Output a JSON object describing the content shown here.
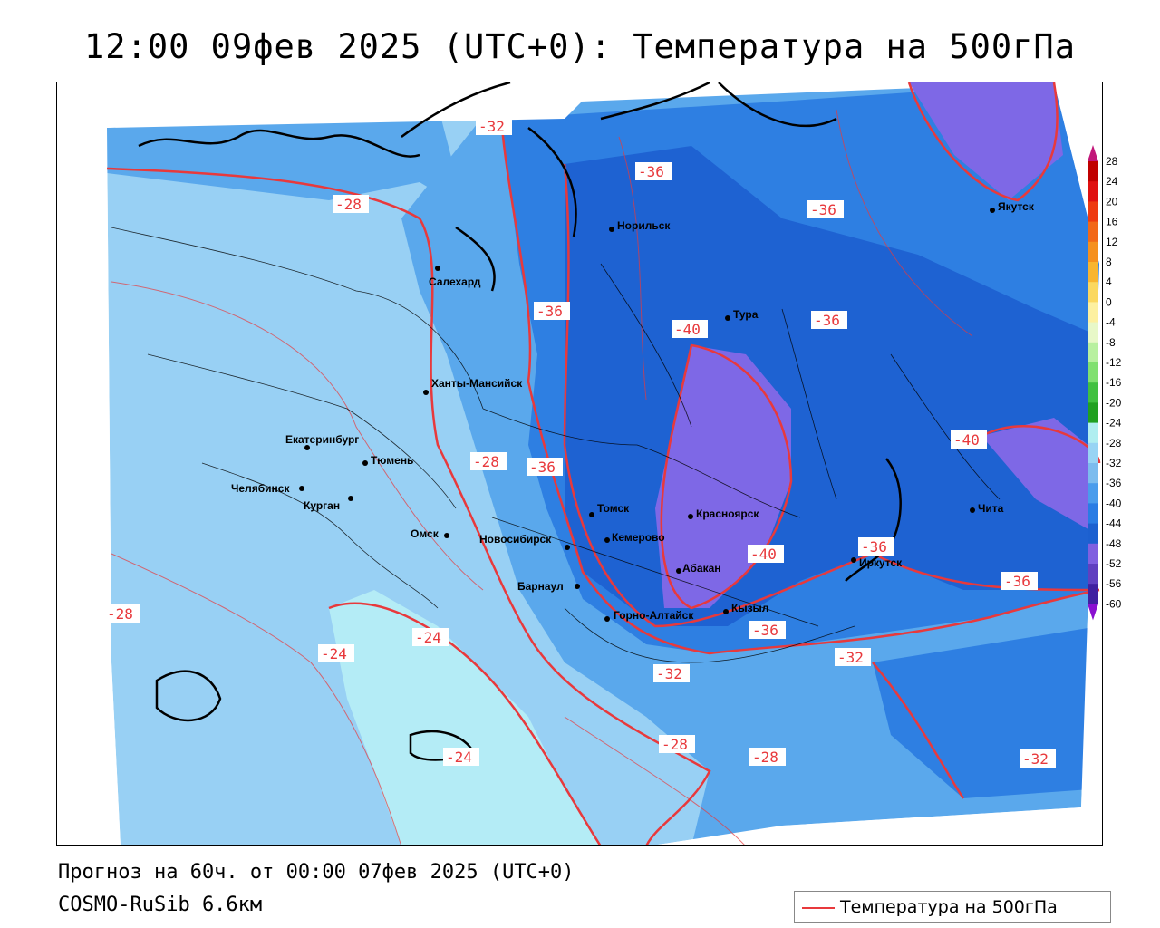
{
  "title": "12:00 09фев 2025 (UTC+0): Температура на 500гПа",
  "footer": {
    "forecast": "Прогноз на 60ч. от 00:00 07фев 2025 (UTC+0)",
    "model": "COSMO-RuSib 6.6км"
  },
  "legend": {
    "label": "Температура на 500гПа",
    "color": "#e8393c"
  },
  "colorbar": {
    "ticks": [
      "28",
      "24",
      "20",
      "16",
      "12",
      "8",
      "4",
      "0",
      "-4",
      "-8",
      "-12",
      "-16",
      "-20",
      "-24",
      "-28",
      "-32",
      "-36",
      "-40",
      "-44",
      "-48",
      "-52",
      "-56",
      "-60"
    ],
    "colors": [
      "#a3006b",
      "#c00000",
      "#e01010",
      "#ee3a10",
      "#f26818",
      "#f5901e",
      "#f8b530",
      "#fbd860",
      "#fdf0a0",
      "#e8f8c8",
      "#b8f0a0",
      "#80e070",
      "#40c040",
      "#20a020",
      "#b0eef0",
      "#98d4f4",
      "#7cbcee",
      "#4a9cec",
      "#2a7ce4",
      "#1c60d0",
      "#8060e0",
      "#6040c0",
      "#4020a0",
      "#3010a0",
      "#5000b0"
    ]
  },
  "contour_labels": [
    "-32",
    "-36",
    "-28",
    "-36",
    "-36",
    "-40",
    "-36",
    "-28",
    "-36",
    "-40",
    "-40",
    "-36",
    "-36",
    "-28",
    "-24",
    "-24",
    "-36",
    "-32",
    "-32",
    "-24",
    "-28",
    "-28",
    "-32"
  ],
  "cities": [
    "Салехард",
    "Норильск",
    "Тура",
    "Якутск",
    "Ханты-Мансийск",
    "Екатеринбург",
    "Тюмень",
    "Челябинск",
    "Курган",
    "Омск",
    "Новосибирск",
    "Томск",
    "Кемерово",
    "Красноярск",
    "Барнаул",
    "Абакан",
    "Горно-Алтайск",
    "Кызыл",
    "Иркутск",
    "Чита"
  ],
  "colors": {
    "contour": "#e8393c",
    "t_m24": "#b4ecf6",
    "t_m28": "#98d0f4",
    "t_m32": "#5aa8ec",
    "t_m36": "#2e7fe2",
    "t_m40": "#1e62d2",
    "t_m44": "#7e68e6"
  }
}
